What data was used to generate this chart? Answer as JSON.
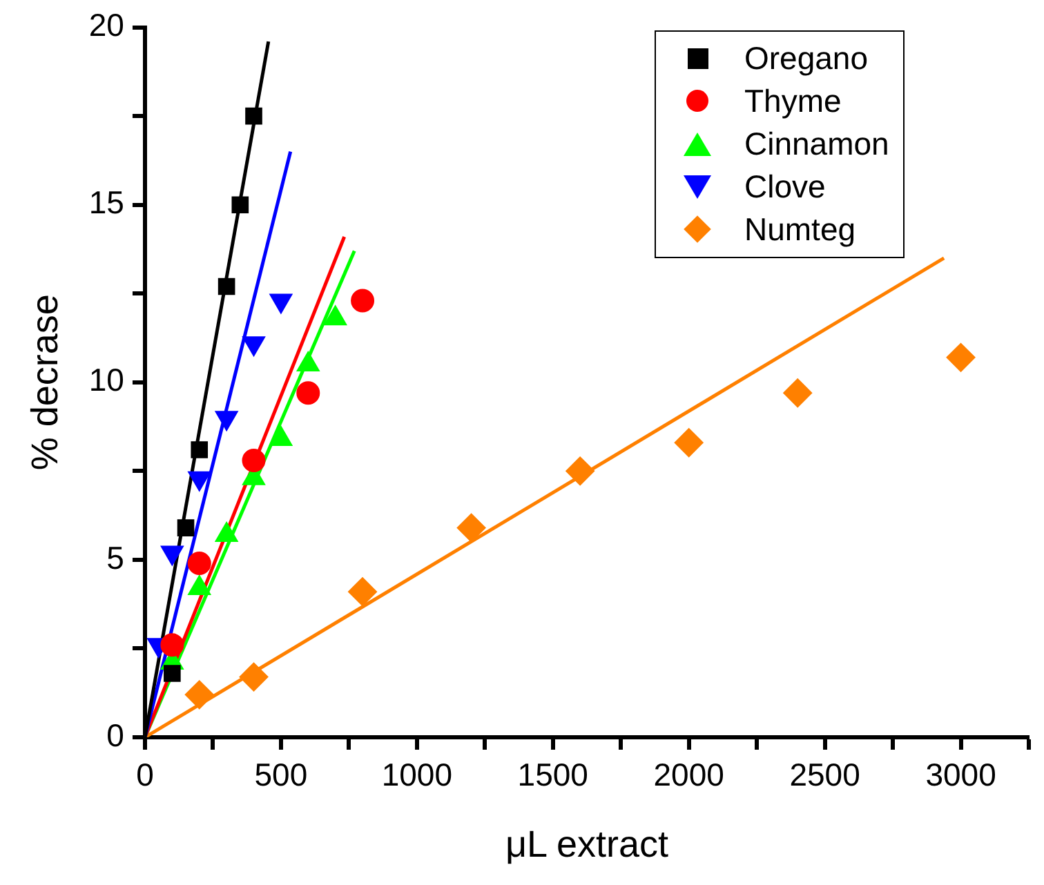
{
  "chart_data": {
    "type": "scatter",
    "xlabel": "μL extract",
    "ylabel": "% decrase",
    "xlim": [
      0,
      3250
    ],
    "ylim": [
      0,
      20
    ],
    "xticks": [
      0,
      {
        "value": 250,
        "label": null
      },
      500,
      {
        "value": 750,
        "label": null
      },
      1000,
      {
        "value": 1250,
        "label": null
      },
      1500,
      {
        "value": 1750,
        "label": null
      },
      2000,
      {
        "value": 2250,
        "label": null
      },
      2500,
      {
        "value": 2750,
        "label": null
      },
      3000,
      {
        "value": 3250,
        "label": null
      }
    ],
    "yticks": [
      0,
      {
        "value": 2.5,
        "label": null
      },
      5,
      {
        "value": 7.5,
        "label": null
      },
      10,
      {
        "value": 12.5,
        "label": null
      },
      15,
      {
        "value": 17.5,
        "label": null
      },
      20
    ],
    "grid": false,
    "legend": "top right",
    "series": [
      {
        "name": "Oregano",
        "color": "#000000",
        "marker": "square",
        "x": [
          100,
          150,
          200,
          300,
          350,
          400
        ],
        "values": [
          1.8,
          5.9,
          8.1,
          12.7,
          15.0,
          17.5
        ]
      },
      {
        "name": "Thyme",
        "color": "#ff0000",
        "marker": "circle",
        "x": [
          100,
          200,
          400,
          600,
          800
        ],
        "values": [
          2.6,
          4.9,
          7.8,
          9.7,
          12.3
        ]
      },
      {
        "name": "Cinnamon",
        "color": "#00ff00",
        "marker": "triangle",
        "x": [
          100,
          200,
          300,
          400,
          500,
          600,
          700
        ],
        "values": [
          2.1,
          4.2,
          5.7,
          7.3,
          8.4,
          10.5,
          11.8
        ]
      },
      {
        "name": "Clove",
        "color": "#0000ff",
        "marker": "triangle-down",
        "x": [
          50,
          100,
          200,
          300,
          400,
          500
        ],
        "values": [
          2.6,
          5.2,
          7.3,
          9.0,
          11.1,
          12.3
        ]
      },
      {
        "name": "Numteg",
        "color": "#ff8000",
        "marker": "diamond",
        "x": [
          200,
          400,
          800,
          1200,
          1600,
          2000,
          2400,
          3000
        ],
        "values": [
          1.2,
          1.7,
          4.1,
          5.9,
          7.5,
          8.3,
          9.7,
          10.7
        ]
      },
      {
        "type": "line",
        "color": "#000000",
        "marker": "none",
        "x": [
          0,
          454
        ],
        "values": [
          0,
          19.6
        ]
      },
      {
        "type": "line",
        "color": "#0000ff",
        "marker": "none",
        "x": [
          0,
          535
        ],
        "values": [
          0,
          16.5
        ]
      },
      {
        "type": "line",
        "color": "#ff0000",
        "marker": "none",
        "x": [
          0,
          733
        ],
        "values": [
          0,
          14.1
        ]
      },
      {
        "type": "line",
        "color": "#00ff00",
        "marker": "none",
        "x": [
          0,
          770
        ],
        "values": [
          0,
          13.7
        ]
      },
      {
        "type": "line",
        "color": "#ff8000",
        "marker": "none",
        "x": [
          0,
          2938
        ],
        "values": [
          0,
          13.5
        ]
      }
    ]
  }
}
